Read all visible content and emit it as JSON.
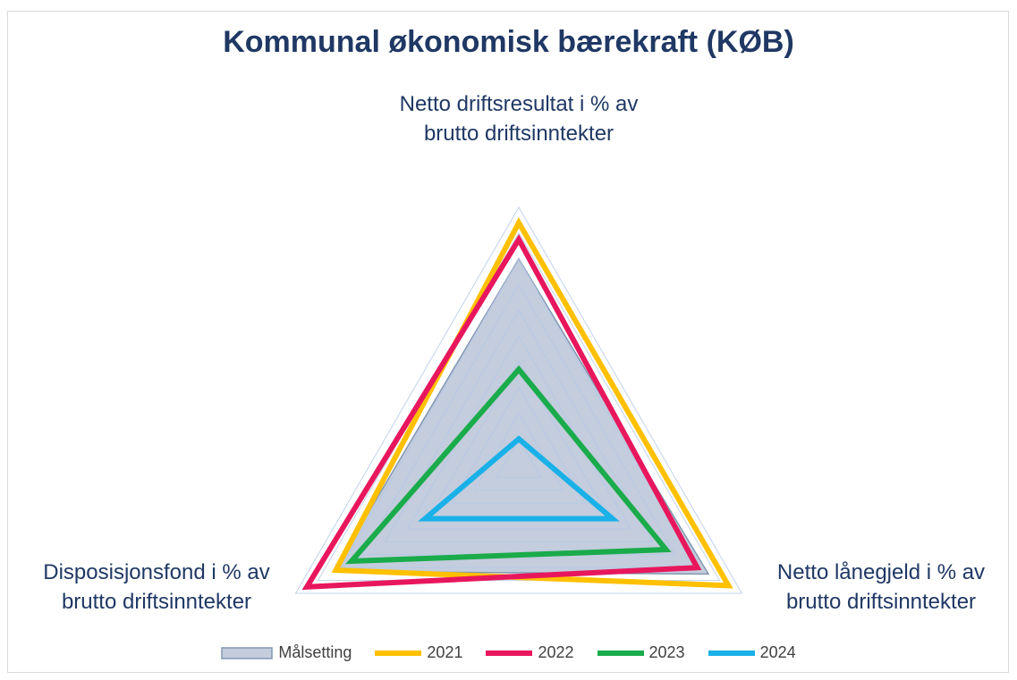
{
  "chart_data": {
    "type": "radar",
    "title": "Kommunal økonomisk bærekraft (KØB)",
    "categories": [
      "Netto driftsresultat i % av brutto driftsinntekter",
      "Netto lånegjeld i % av brutto driftsinntekter",
      "Disposisjonsfond i % av brutto driftsinntekter"
    ],
    "rlim": [
      0,
      10
    ],
    "rticks": [
      1,
      2,
      3,
      4,
      5,
      6,
      7,
      8,
      9,
      10
    ],
    "grid": true,
    "legend": "bottom",
    "series": [
      {
        "name": "Målsetting",
        "color": "#8497b0",
        "fill": "#c3cddd",
        "values": [
          8,
          8.5,
          8.3
        ]
      },
      {
        "name": "2021",
        "color": "#ffc000",
        "values": [
          9.4,
          9.4,
          8.2
        ]
      },
      {
        "name": "2022",
        "color": "#e8175d",
        "values": [
          8.75,
          8.0,
          9.5
        ]
      },
      {
        "name": "2023",
        "color": "#1aab4b",
        "values": [
          3.7,
          6.6,
          7.5
        ]
      },
      {
        "name": "2024",
        "color": "#1ab0e8",
        "values": [
          1.0,
          4.2,
          4.2
        ]
      }
    ]
  }
}
